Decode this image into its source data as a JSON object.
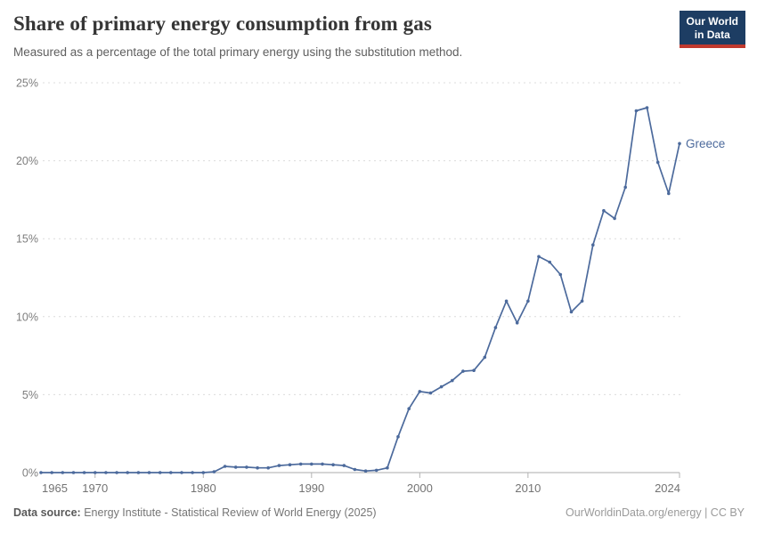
{
  "header": {
    "title": "Share of primary energy consumption from gas",
    "subtitle": "Measured as a percentage of the total primary energy using the substitution method.",
    "logo": {
      "line1": "Our World",
      "line2": "in Data",
      "bg_color": "#1d3d63",
      "accent_color": "#c0392e"
    }
  },
  "chart_data": {
    "type": "line",
    "title": "Share of primary energy consumption from gas",
    "xlabel": "",
    "ylabel": "",
    "xlim": [
      1965,
      2024
    ],
    "ylim": [
      0,
      25
    ],
    "grid": "horizontal-dashed",
    "legend_position": "end-of-line-label",
    "x_tick_labels": [
      "1965",
      "1970",
      "1980",
      "1990",
      "2000",
      "2010",
      "2024"
    ],
    "x_tick_values": [
      1965,
      1970,
      1980,
      1990,
      2000,
      2010,
      2024
    ],
    "y_tick_labels": [
      "0%",
      "5%",
      "10%",
      "15%",
      "20%",
      "25%"
    ],
    "y_tick_values": [
      0,
      5,
      10,
      15,
      20,
      25
    ],
    "series": [
      {
        "name": "Greece",
        "color": "#4c6a9c",
        "x": [
          1965,
          1966,
          1967,
          1968,
          1969,
          1970,
          1971,
          1972,
          1973,
          1974,
          1975,
          1976,
          1977,
          1978,
          1979,
          1980,
          1981,
          1982,
          1983,
          1984,
          1985,
          1986,
          1987,
          1988,
          1989,
          1990,
          1991,
          1992,
          1993,
          1994,
          1995,
          1996,
          1997,
          1998,
          1999,
          2000,
          2001,
          2002,
          2003,
          2004,
          2005,
          2006,
          2007,
          2008,
          2009,
          2010,
          2011,
          2012,
          2013,
          2014,
          2015,
          2016,
          2017,
          2018,
          2019,
          2020,
          2021,
          2022,
          2023,
          2024
        ],
        "values": [
          0,
          0,
          0,
          0,
          0,
          0,
          0,
          0,
          0,
          0,
          0,
          0,
          0,
          0,
          0,
          0,
          0.05,
          0.4,
          0.35,
          0.35,
          0.3,
          0.3,
          0.45,
          0.5,
          0.55,
          0.55,
          0.55,
          0.5,
          0.45,
          0.2,
          0.1,
          0.15,
          0.3,
          2.3,
          4.1,
          5.2,
          5.1,
          5.5,
          5.9,
          6.5,
          6.55,
          7.4,
          9.3,
          11.0,
          9.6,
          11.0,
          13.85,
          13.5,
          12.7,
          10.3,
          11.0,
          14.6,
          16.8,
          16.3,
          18.3,
          23.2,
          23.4,
          19.9,
          17.9,
          21.1
        ]
      }
    ],
    "style": {
      "grid_color": "#dcdcdc",
      "axis_color": "#ababab",
      "tick_color": "#b3b3b3",
      "x_label_color": "#737373",
      "y_label_color": "#7d7d7d"
    }
  },
  "footer": {
    "source_label": "Data source:",
    "source_text": " Energy Institute - Statistical Review of World Energy (2025)",
    "credit": "OurWorldinData.org/energy | CC BY"
  }
}
